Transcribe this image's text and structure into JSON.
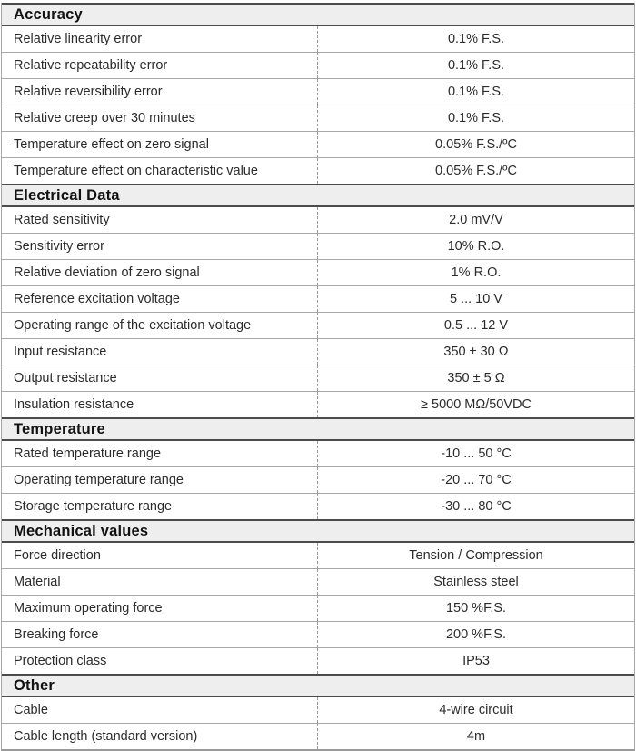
{
  "table": {
    "colors": {
      "header_bg": "#eeeeee",
      "dark_border": "#4b4b4b",
      "grid_line": "#a8a8a8",
      "dashed_divider": "#999999",
      "text": "#2b2b2b"
    },
    "sections": [
      {
        "title": "Accuracy",
        "rows": [
          {
            "label": "Relative linearity error",
            "value": "0.1% F.S."
          },
          {
            "label": "Relative repeatability error",
            "value": "0.1% F.S."
          },
          {
            "label": "Relative reversibility error",
            "value": "0.1% F.S."
          },
          {
            "label": "Relative creep over 30 minutes",
            "value": "0.1% F.S."
          },
          {
            "label": "Temperature effect on zero signal",
            "value": "0.05% F.S./ºC"
          },
          {
            "label": "Temperature effect on characteristic value",
            "value": "0.05% F.S./ºC"
          }
        ]
      },
      {
        "title": "Electrical Data",
        "rows": [
          {
            "label": "Rated sensitivity",
            "value": "2.0 mV/V"
          },
          {
            "label": "Sensitivity error",
            "value": "10% R.O."
          },
          {
            "label": "Relative deviation of zero signal",
            "value": "1% R.O."
          },
          {
            "label": "Reference excitation voltage",
            "value": "5 ... 10 V"
          },
          {
            "label": "Operating range of the excitation voltage",
            "value": "0.5 ... 12 V"
          },
          {
            "label": "Input resistance",
            "value": "350 ± 30 Ω"
          },
          {
            "label": "Output resistance",
            "value": "350 ± 5 Ω"
          },
          {
            "label": "Insulation resistance",
            "value": "≥ 5000 MΩ/50VDC"
          }
        ]
      },
      {
        "title": "Temperature",
        "rows": [
          {
            "label": "Rated temperature range",
            "value": "-10 ... 50 °C"
          },
          {
            "label": "Operating temperature range",
            "value": "-20 ... 70 °C"
          },
          {
            "label": "Storage temperature range",
            "value": "-30 ... 80 °C"
          }
        ]
      },
      {
        "title": "Mechanical values",
        "rows": [
          {
            "label": "Force direction",
            "value": "Tension / Compression"
          },
          {
            "label": "Material",
            "value": "Stainless steel"
          },
          {
            "label": "Maximum operating force",
            "value": "150 %F.S."
          },
          {
            "label": "Breaking force",
            "value": "200 %F.S."
          },
          {
            "label": "Protection class",
            "value": "IP53"
          }
        ]
      },
      {
        "title": "Other",
        "rows": [
          {
            "label": "Cable",
            "value": "4-wire circuit"
          },
          {
            "label": "Cable length (standard version)",
            "value": "4m"
          }
        ]
      }
    ]
  }
}
